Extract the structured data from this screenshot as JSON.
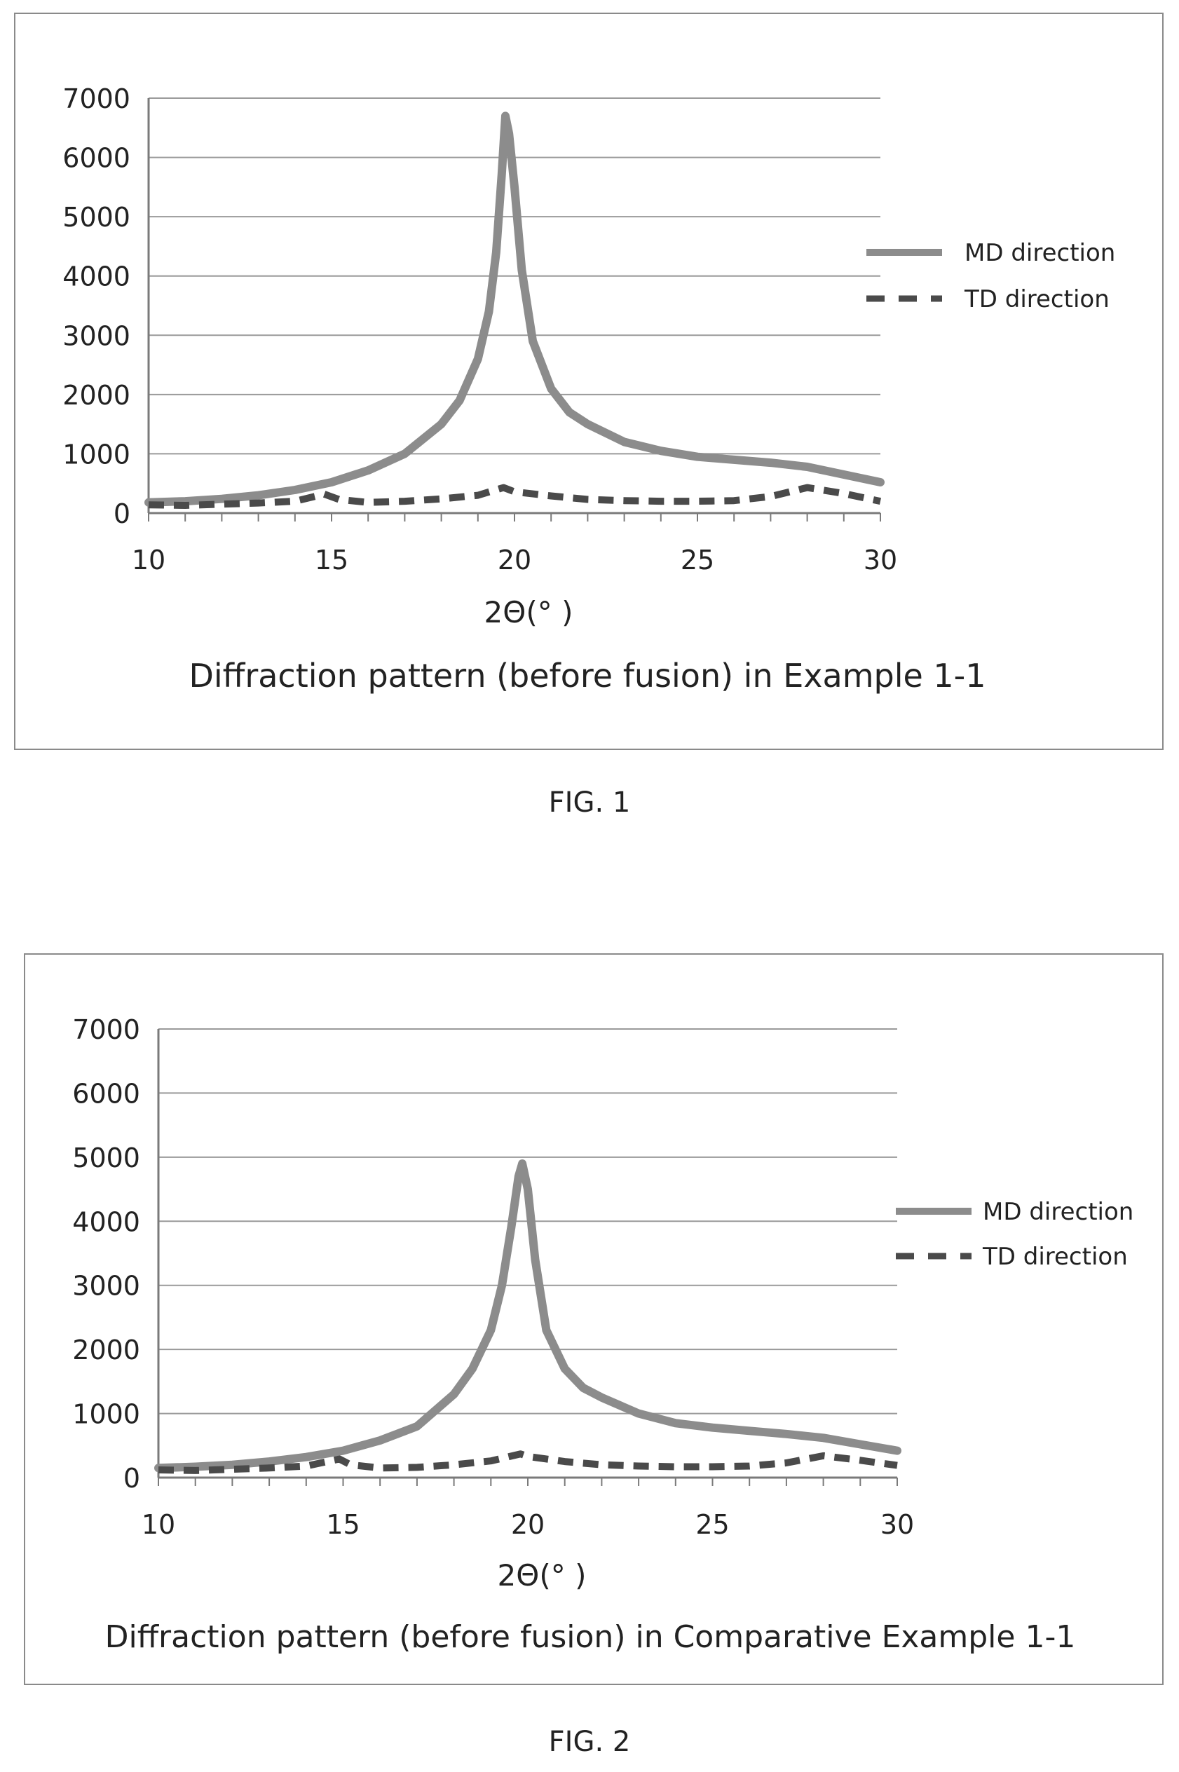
{
  "figures": [
    {
      "fig_label": "FIG. 1",
      "chart_data": {
        "type": "line",
        "title": "Diffraction pattern (before fusion) in Example 1-1",
        "xlabel": "2Θ(°  )",
        "ylabel": "",
        "xlim": [
          10,
          30
        ],
        "ylim": [
          0,
          7000
        ],
        "x_ticks": [
          10,
          15,
          20,
          25,
          30
        ],
        "y_ticks": [
          0,
          1000,
          2000,
          3000,
          4000,
          5000,
          6000,
          7000
        ],
        "grid": "horizontal",
        "legend": "right",
        "series": [
          {
            "name": "MD direction",
            "style": "solid",
            "color": "#8c8c8c",
            "points": [
              [
                10,
                180
              ],
              [
                11,
                200
              ],
              [
                12,
                240
              ],
              [
                13,
                300
              ],
              [
                14,
                390
              ],
              [
                15,
                520
              ],
              [
                16,
                720
              ],
              [
                17,
                1000
              ],
              [
                18,
                1500
              ],
              [
                18.5,
                1900
              ],
              [
                19,
                2600
              ],
              [
                19.3,
                3400
              ],
              [
                19.5,
                4400
              ],
              [
                19.65,
                5700
              ],
              [
                19.75,
                6700
              ],
              [
                19.85,
                6400
              ],
              [
                20,
                5500
              ],
              [
                20.2,
                4100
              ],
              [
                20.5,
                2900
              ],
              [
                21,
                2100
              ],
              [
                21.5,
                1700
              ],
              [
                22,
                1500
              ],
              [
                23,
                1200
              ],
              [
                24,
                1050
              ],
              [
                25,
                950
              ],
              [
                26,
                900
              ],
              [
                27,
                850
              ],
              [
                28,
                780
              ],
              [
                29,
                650
              ],
              [
                30,
                520
              ]
            ]
          },
          {
            "name": "TD direction",
            "style": "dashed",
            "color": "#4a4a4a",
            "points": [
              [
                10,
                140
              ],
              [
                11,
                130
              ],
              [
                12,
                150
              ],
              [
                13,
                170
              ],
              [
                14,
                200
              ],
              [
                14.8,
                320
              ],
              [
                15.2,
                230
              ],
              [
                16,
                180
              ],
              [
                17,
                200
              ],
              [
                18,
                240
              ],
              [
                19,
                300
              ],
              [
                19.7,
                430
              ],
              [
                20,
                360
              ],
              [
                21,
                290
              ],
              [
                22,
                230
              ],
              [
                23,
                210
              ],
              [
                24,
                200
              ],
              [
                25,
                200
              ],
              [
                26,
                210
              ],
              [
                27,
                280
              ],
              [
                28,
                430
              ],
              [
                29,
                330
              ],
              [
                30,
                200
              ]
            ]
          }
        ]
      }
    },
    {
      "fig_label": "FIG. 2",
      "chart_data": {
        "type": "line",
        "title": "Diffraction pattern (before fusion) in Comparative Example 1-1",
        "xlabel": "2Θ(°  )",
        "ylabel": "",
        "xlim": [
          10,
          30
        ],
        "ylim": [
          0,
          7000
        ],
        "x_ticks": [
          10,
          15,
          20,
          25,
          30
        ],
        "y_ticks": [
          0,
          1000,
          2000,
          3000,
          4000,
          5000,
          6000,
          7000
        ],
        "grid": "horizontal",
        "legend": "right",
        "series": [
          {
            "name": "MD direction",
            "style": "solid",
            "color": "#8c8c8c",
            "points": [
              [
                10,
                150
              ],
              [
                11,
                170
              ],
              [
                12,
                200
              ],
              [
                13,
                250
              ],
              [
                14,
                320
              ],
              [
                15,
                420
              ],
              [
                16,
                580
              ],
              [
                17,
                800
              ],
              [
                18,
                1300
              ],
              [
                18.5,
                1700
              ],
              [
                19,
                2300
              ],
              [
                19.3,
                3000
              ],
              [
                19.55,
                3900
              ],
              [
                19.75,
                4700
              ],
              [
                19.85,
                4900
              ],
              [
                20,
                4500
              ],
              [
                20.2,
                3400
              ],
              [
                20.5,
                2300
              ],
              [
                21,
                1700
              ],
              [
                21.5,
                1400
              ],
              [
                22,
                1250
              ],
              [
                23,
                1000
              ],
              [
                24,
                850
              ],
              [
                25,
                780
              ],
              [
                26,
                730
              ],
              [
                27,
                680
              ],
              [
                28,
                620
              ],
              [
                29,
                520
              ],
              [
                30,
                420
              ]
            ]
          },
          {
            "name": "TD direction",
            "style": "dashed",
            "color": "#4a4a4a",
            "points": [
              [
                10,
                120
              ],
              [
                11,
                110
              ],
              [
                12,
                130
              ],
              [
                13,
                150
              ],
              [
                14,
                180
              ],
              [
                14.9,
                290
              ],
              [
                15.2,
                200
              ],
              [
                16,
                150
              ],
              [
                17,
                160
              ],
              [
                18,
                200
              ],
              [
                19,
                260
              ],
              [
                19.8,
                370
              ],
              [
                20,
                330
              ],
              [
                21,
                250
              ],
              [
                22,
                200
              ],
              [
                23,
                180
              ],
              [
                24,
                170
              ],
              [
                25,
                170
              ],
              [
                26,
                180
              ],
              [
                27,
                230
              ],
              [
                28,
                340
              ],
              [
                29,
                270
              ],
              [
                30,
                190
              ]
            ]
          }
        ]
      }
    }
  ]
}
